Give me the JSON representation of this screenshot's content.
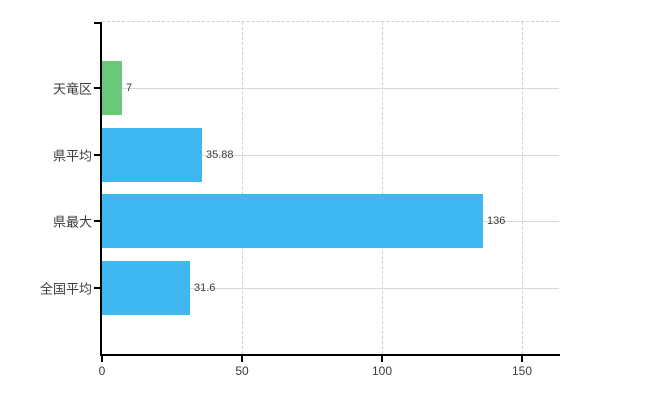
{
  "chart_data": {
    "type": "bar",
    "orientation": "horizontal",
    "title": "",
    "xlabel": "",
    "ylabel": "",
    "categories": [
      "天竜区",
      "県平均",
      "県最大",
      "全国平均"
    ],
    "values": [
      7,
      35.88,
      136,
      31.6
    ],
    "value_labels": [
      "7",
      "35.88",
      "136",
      "31.6"
    ],
    "bar_colors": [
      "#68c97a",
      "#3fb7f0",
      "#3fb7f0",
      "#3fb7f0"
    ],
    "x_ticks": [
      0,
      50,
      100,
      150
    ],
    "x_tick_labels": [
      "0",
      "50",
      "100",
      "150"
    ],
    "xlim": [
      0,
      163.2
    ],
    "grid": {
      "vertical_style": "dashed",
      "horizontal_style": "solid",
      "top_border_style": "dashed"
    },
    "legend_position": "none"
  },
  "colors": {
    "background": "#ffffff",
    "bar_blue": "#3fb7f0",
    "bar_green": "#68c97a",
    "axis": "#000000",
    "grid_solid": "#d5dad3",
    "grid_dashed": "#cfcfcf",
    "text": "#3c3c3c"
  }
}
